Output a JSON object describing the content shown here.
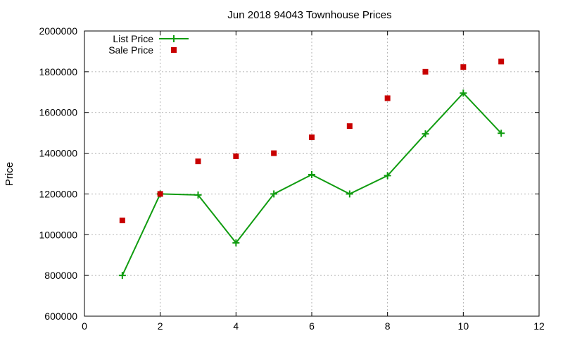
{
  "chart_data": {
    "type": "line",
    "title": "Jun 2018 94043 Townhouse Prices",
    "xlabel": "",
    "ylabel": "Price",
    "xlim": [
      0,
      12
    ],
    "ylim": [
      600000,
      2000000
    ],
    "xticks": [
      0,
      2,
      4,
      6,
      8,
      10,
      12
    ],
    "yticks": [
      600000,
      800000,
      1000000,
      1200000,
      1400000,
      1600000,
      1800000,
      2000000
    ],
    "grid": true,
    "legend_position": "top-left",
    "series": [
      {
        "name": "List Price",
        "style": "line+cross",
        "color": "#109c10",
        "x": [
          1,
          2,
          3,
          4,
          5,
          6,
          7,
          8,
          9,
          10,
          11
        ],
        "y": [
          800000,
          1200000,
          1195000,
          960000,
          1200000,
          1295000,
          1200000,
          1290000,
          1495000,
          1695000,
          1498000
        ]
      },
      {
        "name": "Sale Price",
        "style": "square",
        "color": "#c80000",
        "x": [
          1,
          2,
          3,
          4,
          5,
          6,
          7,
          8,
          9,
          10,
          11
        ],
        "y": [
          1070000,
          1200000,
          1360000,
          1385000,
          1400000,
          1478000,
          1533000,
          1670000,
          1800000,
          1823000,
          1850000
        ]
      }
    ]
  }
}
